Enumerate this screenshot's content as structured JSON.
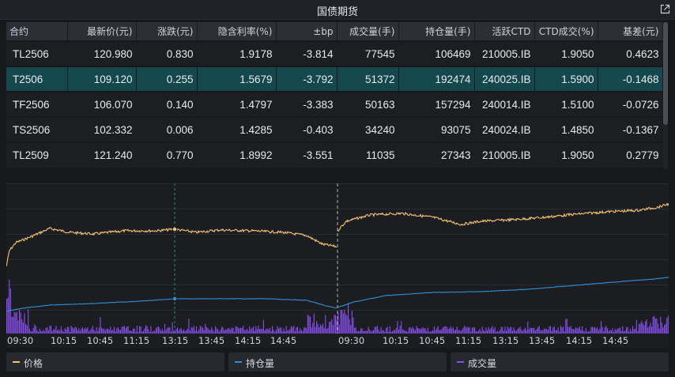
{
  "window": {
    "title": "国债期货",
    "popout_icon": "external-link-icon"
  },
  "table": {
    "headers": [
      "合约",
      "最新价(元)",
      "涨跌(元)",
      "隐含利率(%)",
      "±bp",
      "成交量(手)",
      "持仓量(手)",
      "活跃CTD",
      "CTD成交(%)",
      "基差(元)"
    ],
    "rows": [
      {
        "symbol": "TL2506",
        "last": "120.980",
        "change": "0.830",
        "implied_rate": "1.9178",
        "bp": "-3.814",
        "volume": "77545",
        "open_interest": "106469",
        "ctd": "210005.IB",
        "ctd_yield": "1.9050",
        "basis": "0.4623",
        "selected": false
      },
      {
        "symbol": "T2506",
        "last": "109.120",
        "change": "0.255",
        "implied_rate": "1.5679",
        "bp": "-3.792",
        "volume": "51372",
        "open_interest": "192474",
        "ctd": "240025.IB",
        "ctd_yield": "1.5900",
        "basis": "-0.1468",
        "selected": true
      },
      {
        "symbol": "TF2506",
        "last": "106.070",
        "change": "0.140",
        "implied_rate": "1.4797",
        "bp": "-3.383",
        "volume": "50163",
        "open_interest": "157294",
        "ctd": "240014.IB",
        "ctd_yield": "1.5100",
        "basis": "-0.0726",
        "selected": false
      },
      {
        "symbol": "TS2506",
        "last": "102.332",
        "change": "0.006",
        "implied_rate": "1.4285",
        "bp": "-0.403",
        "volume": "34240",
        "open_interest": "93075",
        "ctd": "240024.IB",
        "ctd_yield": "1.4850",
        "basis": "-0.1367",
        "selected": false
      },
      {
        "symbol": "TL2509",
        "last": "121.240",
        "change": "0.770",
        "implied_rate": "1.8992",
        "bp": "-3.551",
        "volume": "11035",
        "open_interest": "27343",
        "ctd": "210005.IB",
        "ctd_yield": "1.9050",
        "basis": "0.2779",
        "selected": false
      }
    ]
  },
  "chart": {
    "session1_ticks": [
      "09:30",
      "10:15",
      "10:45",
      "11:15",
      "13:15",
      "13:45",
      "14:15",
      "14:45"
    ],
    "session2_ticks": [
      "09:30",
      "10:15",
      "10:45",
      "11:15",
      "13:15",
      "13:45",
      "14:15",
      "14:45"
    ],
    "colors": {
      "price": "#f5c471",
      "open_interest": "#2e8fd6",
      "volume": "#8a4ff0",
      "crosshair": "#2a8c78",
      "session_divider": "#b0b4ba",
      "grid": "#2a2d33"
    },
    "legend": [
      {
        "label": "价格",
        "color": "#f5c471"
      },
      {
        "label": "持仓量",
        "color": "#2e8fd6"
      },
      {
        "label": "成交量",
        "color": "#8a4ff0"
      }
    ]
  }
}
